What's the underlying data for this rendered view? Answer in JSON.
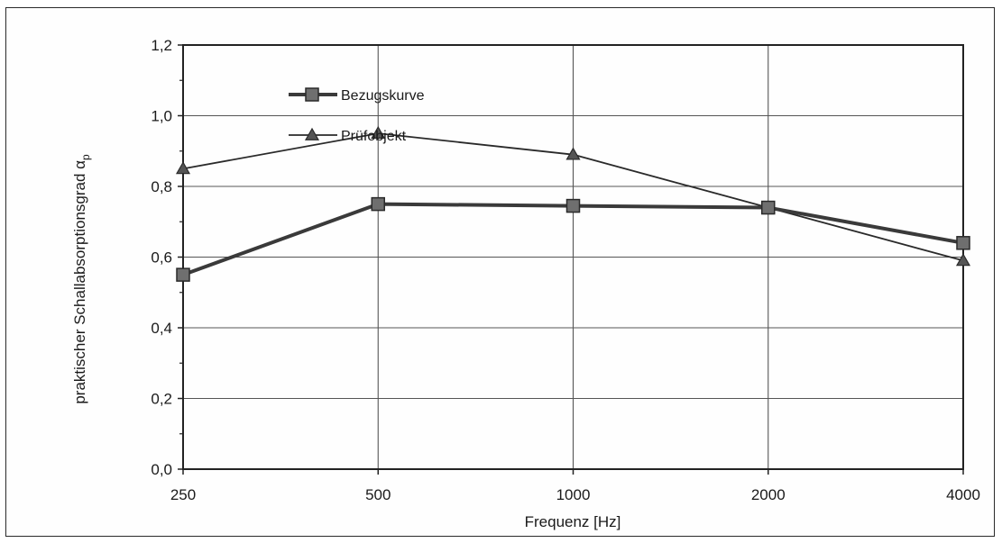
{
  "chart_data": {
    "type": "line",
    "categories": [
      "250",
      "500",
      "1000",
      "2000",
      "4000"
    ],
    "series": [
      {
        "name": "Bezugskurve",
        "values": [
          0.55,
          0.75,
          0.745,
          0.74,
          0.64
        ],
        "color": "#3a3a3a",
        "marker": "square"
      },
      {
        "name": "Prüfobjekt",
        "values": [
          0.85,
          0.95,
          0.89,
          0.74,
          0.59
        ],
        "color": "#2a2a2a",
        "marker": "triangle"
      }
    ],
    "y_ticks": [
      "0,0",
      "0,2",
      "0,4",
      "0,6",
      "0,8",
      "1,0",
      "1,2"
    ],
    "y_tick_values": [
      0,
      0.2,
      0.4,
      0.6,
      0.8,
      1.0,
      1.2
    ],
    "ylim": [
      0,
      1.2
    ],
    "xlabel": "Frequenz [Hz]",
    "ylabel_main": "praktischer Schallabsorptionsgrad α",
    "ylabel_sub": "p",
    "grid": true,
    "legend_position": "upper-left inside plot"
  }
}
